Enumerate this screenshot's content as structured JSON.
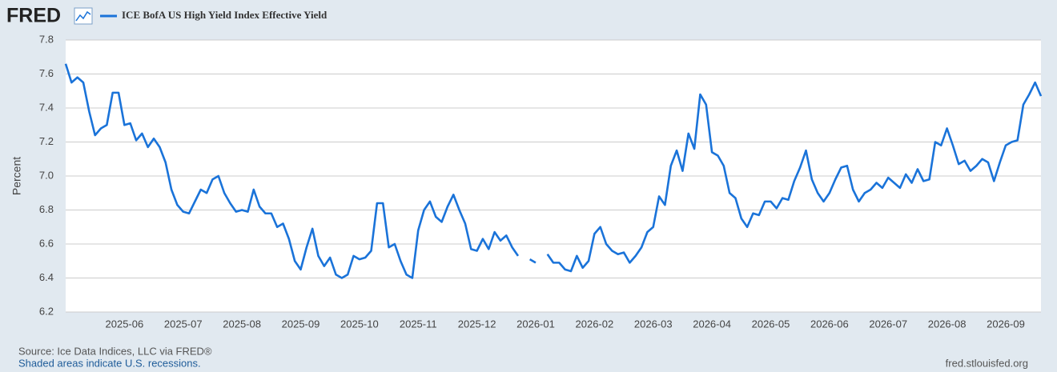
{
  "logo": "FRED",
  "source": "Source: Ice Data Indices, LLC via FRED®",
  "note": "Shaded areas indicate U.S. recessions.",
  "url": "fred.stlouisfed.org",
  "chart_data": {
    "type": "line",
    "ylabel": "Percent",
    "categories": [
      null,
      null,
      null,
      null,
      null,
      null,
      null,
      null,
      null,
      null,
      "2025-06",
      null,
      null,
      null,
      null,
      null,
      null,
      null,
      null,
      null,
      "2025-07",
      null,
      null,
      null,
      null,
      null,
      null,
      null,
      null,
      null,
      "2025-08",
      null,
      null,
      null,
      null,
      null,
      null,
      null,
      null,
      null,
      "2025-09",
      null,
      null,
      null,
      null,
      null,
      null,
      null,
      null,
      null,
      "2025-10",
      null,
      null,
      null,
      null,
      null,
      null,
      null,
      null,
      null,
      "2025-11",
      null,
      null,
      null,
      null,
      null,
      null,
      null,
      null,
      null,
      "2025-12",
      null,
      null,
      null,
      null,
      null,
      null,
      null,
      null,
      null,
      "2026-01",
      null,
      null,
      null,
      null,
      null,
      null,
      null,
      null,
      null,
      "2026-02",
      null,
      null,
      null,
      null,
      null,
      null,
      null,
      null,
      null,
      "2026-03",
      null,
      null,
      null,
      null,
      null,
      null,
      null,
      null,
      null,
      "2026-04",
      null,
      null,
      null,
      null,
      null,
      null,
      null,
      null,
      null,
      "2026-05",
      null,
      null,
      null,
      null,
      null,
      null,
      null,
      null,
      null,
      "2026-06",
      null,
      null,
      null,
      null,
      null,
      null,
      null,
      null,
      null,
      "2026-07",
      null,
      null,
      null,
      null,
      null,
      null,
      null,
      null,
      null,
      "2026-08",
      null,
      null,
      null,
      null,
      null,
      null,
      null,
      null,
      null,
      "2026-09",
      null,
      null,
      null,
      null,
      null,
      null
    ],
    "series": [
      {
        "name": "ICE BofA US High Yield Index Effective Yield",
        "color": "#1a73d9",
        "values": [
          7.66,
          7.55,
          7.58,
          7.55,
          7.38,
          7.24,
          7.28,
          7.3,
          7.49,
          7.49,
          7.3,
          7.31,
          7.21,
          7.25,
          7.17,
          7.22,
          7.17,
          7.08,
          6.92,
          6.83,
          6.79,
          6.78,
          6.85,
          6.92,
          6.9,
          6.98,
          7.0,
          6.9,
          6.84,
          6.79,
          6.8,
          6.79,
          6.92,
          6.82,
          6.78,
          6.78,
          6.7,
          6.72,
          6.63,
          6.5,
          6.45,
          6.58,
          6.69,
          6.53,
          6.47,
          6.52,
          6.42,
          6.4,
          6.42,
          6.53,
          6.51,
          6.52,
          6.56,
          6.84,
          6.84,
          6.58,
          6.6,
          6.5,
          6.42,
          6.4,
          6.68,
          6.8,
          6.85,
          6.76,
          6.73,
          6.82,
          6.89,
          6.8,
          6.72,
          6.57,
          6.56,
          6.63,
          6.57,
          6.67,
          6.62,
          6.65,
          6.58,
          6.53,
          null,
          6.51,
          6.49,
          null,
          6.54,
          6.49,
          6.49,
          6.45,
          6.44,
          6.53,
          6.46,
          6.5,
          6.66,
          6.7,
          6.6,
          6.56,
          6.54,
          6.55,
          6.49,
          6.53,
          6.58,
          6.67,
          6.7,
          6.88,
          6.83,
          7.06,
          7.15,
          7.03,
          7.25,
          7.16,
          7.48,
          7.42,
          7.14,
          7.12,
          7.06,
          6.9,
          6.87,
          6.75,
          6.7,
          6.78,
          6.77,
          6.85,
          6.85,
          6.81,
          6.87,
          6.86,
          6.97,
          7.05,
          7.15,
          6.98,
          6.9,
          6.85,
          6.9,
          6.98,
          7.05,
          7.06,
          6.92,
          6.85,
          6.9,
          6.92,
          6.96,
          6.93,
          6.99,
          6.96,
          6.93,
          7.01,
          6.96,
          7.04,
          6.97,
          6.98,
          7.2,
          7.18,
          7.28,
          7.18,
          7.07,
          7.09,
          7.03,
          7.06,
          7.1,
          7.08,
          6.97,
          7.08,
          7.18,
          7.2,
          7.21,
          7.42,
          7.48,
          7.55,
          7.47
        ]
      }
    ],
    "ylim": [
      6.2,
      7.8
    ],
    "yticks": [
      6.2,
      6.4,
      6.6,
      6.8,
      {
        "value": 7,
        "label": "7.0"
      },
      7.2,
      7.4,
      7.6,
      7.8
    ],
    "grid": true
  }
}
